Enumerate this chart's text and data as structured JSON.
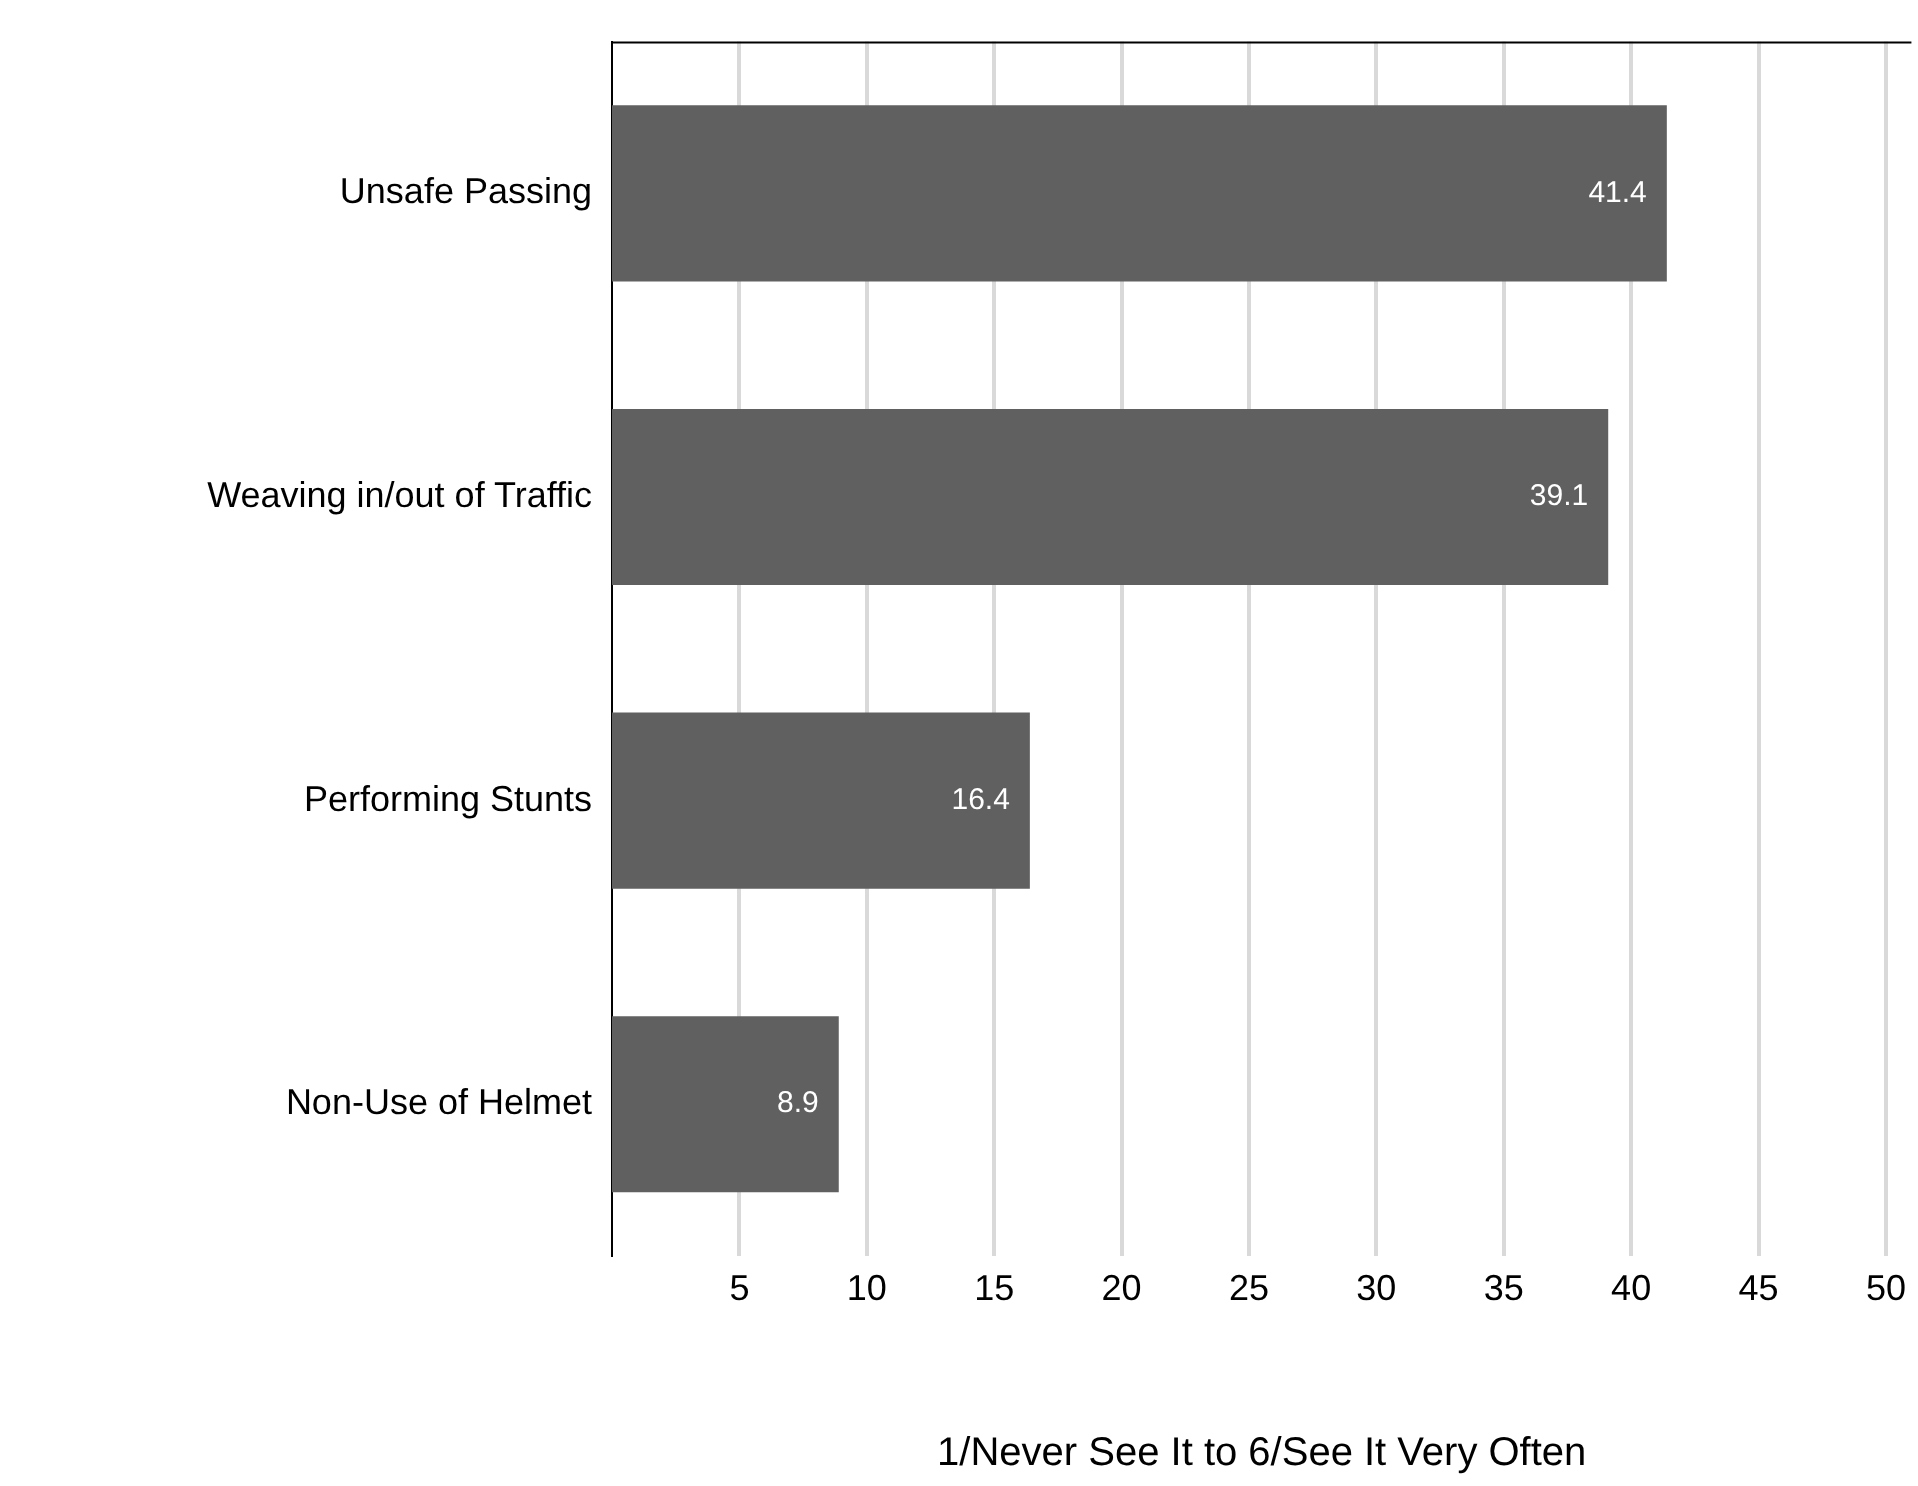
{
  "chart_data": {
    "type": "bar",
    "orientation": "horizontal",
    "xlabel": "1/Never See It to 6/See It Very Often",
    "categories": [
      "Unsafe Passing",
      "Weaving in/out of Traffic",
      "Performing Stunts",
      "Non-Use of Helmet"
    ],
    "values": [
      41.4,
      39.1,
      16.4,
      8.9
    ],
    "color": "#606060",
    "xlim": [
      0,
      51
    ],
    "xticks": [
      5,
      10,
      15,
      20,
      25,
      30,
      35,
      40,
      45,
      50
    ],
    "grid": "x",
    "data_labels": true
  }
}
